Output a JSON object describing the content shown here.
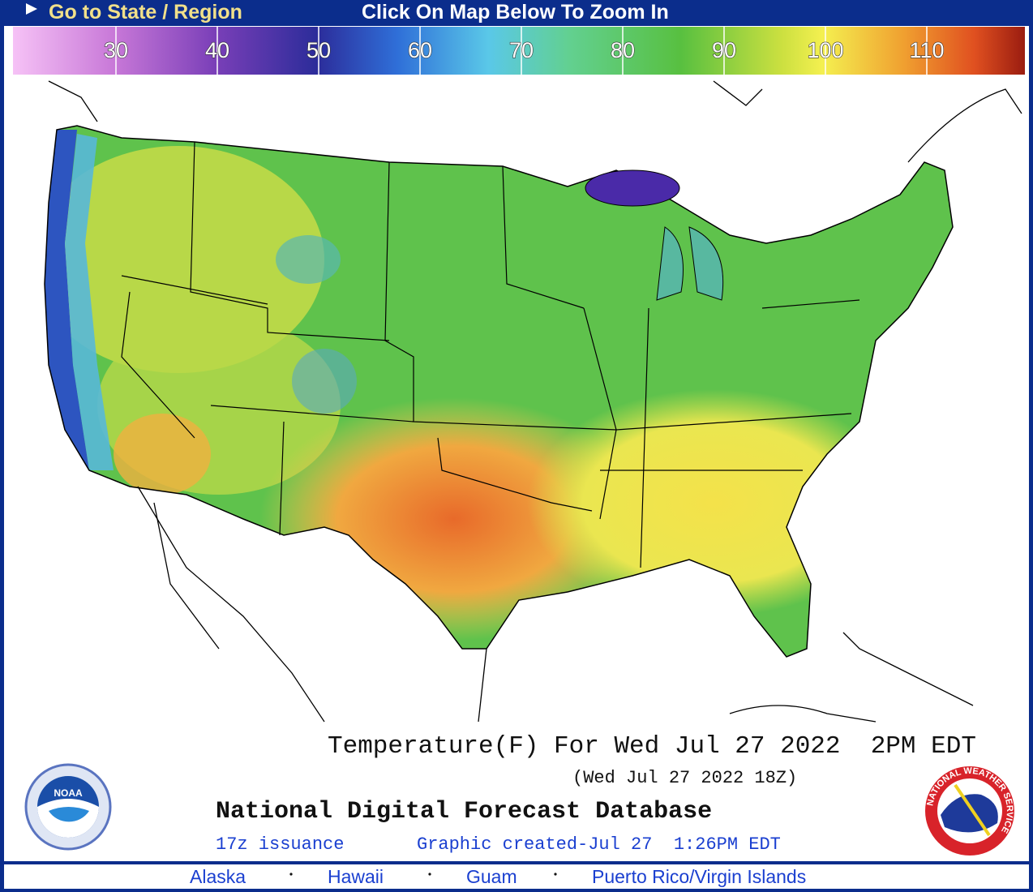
{
  "header": {
    "state_link": "Go to State / Region",
    "instruction": "Click On Map Below To Zoom In"
  },
  "legend": {
    "labels": [
      30,
      40,
      50,
      60,
      70,
      80,
      90,
      100,
      110
    ]
  },
  "map": {
    "title": "Temperature(F) For Wed Jul 27 2022  2PM EDT",
    "subtitle": "(Wed Jul 27 2022 18Z)",
    "source": "National Digital Forecast Database",
    "issuance": "17z issuance",
    "created": "Graphic created-Jul 27  1:26PM EDT"
  },
  "logos": {
    "noaa": "NOAA",
    "nws": "NATIONAL WEATHER SERVICE"
  },
  "footer": {
    "links": [
      "Alaska",
      "Hawaii",
      "Guam",
      "Puerto Rico/Virgin Islands"
    ]
  }
}
